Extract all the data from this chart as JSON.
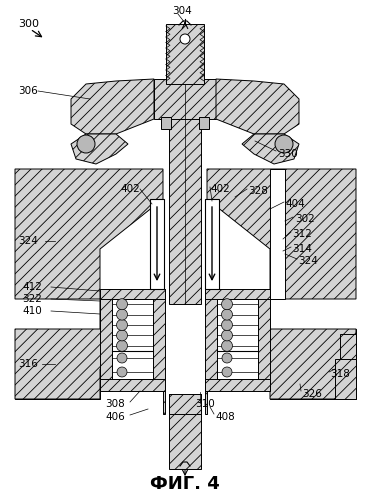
{
  "title": "ФИГ. 4",
  "title_fontsize": 13,
  "label_fontsize": 7.5,
  "bg_color": "#ffffff",
  "figsize": [
    3.71,
    4.99
  ],
  "dpi": 100,
  "hatch_fc": "#d4d4d4",
  "hatch_pattern": "///",
  "stem_fc": "#c8c8c8"
}
